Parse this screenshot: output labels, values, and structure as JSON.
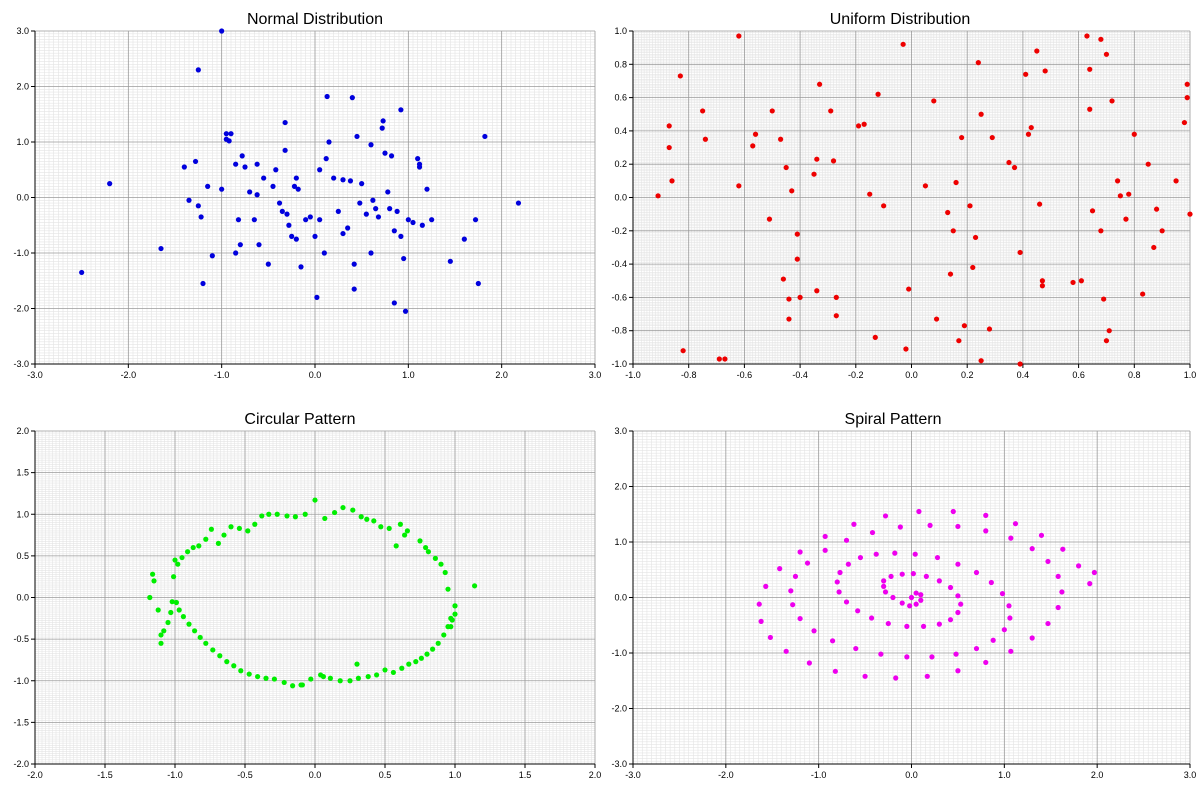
{
  "chart_data": [
    {
      "type": "scatter",
      "title": "Normal Distribution",
      "xlim": [
        -3,
        3
      ],
      "ylim": [
        -3,
        3
      ],
      "x_ticks": [
        -3,
        -2,
        -1,
        0,
        1,
        2,
        3
      ],
      "y_ticks": [
        -3,
        -2,
        -1,
        0,
        1,
        2,
        3
      ],
      "x_tick_labels": [
        "-3.0",
        "-2.0",
        "-1.0",
        "0.0",
        "1.0",
        "2.0",
        "3.0"
      ],
      "y_tick_labels": [
        "-3.0",
        "-2.0",
        "-1.0",
        "0.0",
        "1.0",
        "2.0",
        "3.0"
      ],
      "grid": true,
      "color": "#0000dd",
      "x": [
        -1.0,
        -1.25,
        -2.2,
        -2.5,
        -1.65,
        -1.4,
        -1.35,
        -1.28,
        -1.25,
        -1.2,
        -1.22,
        -1.15,
        -1.1,
        -1.0,
        -0.95,
        -0.92,
        -0.9,
        -0.85,
        -0.82,
        -0.8,
        -0.78,
        -0.75,
        -0.7,
        -0.65,
        -0.62,
        -0.6,
        -0.55,
        -0.5,
        -0.45,
        -0.42,
        -0.38,
        -0.35,
        -0.32,
        -0.3,
        -0.28,
        -0.25,
        -0.22,
        -0.2,
        -0.18,
        -0.15,
        -0.1,
        -0.05,
        0.0,
        0.02,
        0.05,
        0.1,
        0.12,
        0.15,
        0.2,
        0.25,
        0.3,
        0.35,
        0.38,
        0.42,
        0.45,
        0.48,
        0.5,
        0.55,
        0.6,
        0.62,
        0.65,
        0.68,
        0.72,
        0.75,
        0.78,
        0.8,
        0.85,
        0.88,
        0.92,
        0.95,
        1.0,
        1.05,
        1.1,
        1.12,
        1.15,
        1.2,
        1.25,
        1.45,
        1.6,
        1.72,
        1.75,
        1.82,
        2.18,
        0.42,
        -0.85,
        -0.95,
        0.85,
        0.97,
        0.05,
        0.4,
        0.13,
        0.73,
        -0.2,
        0.3,
        0.6,
        -0.32,
        0.92,
        1.12,
        -0.62,
        0.82
      ],
      "y": [
        3.0,
        2.3,
        0.25,
        -1.35,
        -0.92,
        0.55,
        -0.05,
        0.65,
        -0.15,
        -1.55,
        -0.35,
        0.2,
        -1.05,
        0.15,
        1.05,
        1.02,
        1.15,
        0.6,
        -0.4,
        -0.85,
        0.75,
        0.55,
        0.1,
        -0.4,
        0.6,
        -0.85,
        0.35,
        -1.2,
        0.2,
        0.5,
        -0.1,
        -0.25,
        0.85,
        -0.3,
        -0.5,
        -0.7,
        0.2,
        0.35,
        0.15,
        -1.25,
        -0.4,
        -0.35,
        -0.7,
        -1.8,
        0.5,
        -1.0,
        0.7,
        1.0,
        0.35,
        -0.25,
        -0.65,
        -0.55,
        0.3,
        -1.65,
        1.1,
        -0.1,
        0.25,
        -0.3,
        0.95,
        -0.05,
        -0.2,
        -0.35,
        1.25,
        0.8,
        0.1,
        -0.2,
        -0.6,
        -0.25,
        -0.7,
        -1.1,
        -0.4,
        -0.45,
        0.7,
        0.6,
        -0.5,
        0.15,
        -0.4,
        -1.15,
        -0.75,
        -0.4,
        -1.55,
        1.1,
        -0.1,
        -1.2,
        -1.0,
        1.15,
        -1.9,
        -2.05,
        -0.4,
        1.8,
        1.82,
        1.38,
        -0.75,
        0.32,
        -1.0,
        1.35,
        1.58,
        0.55,
        0.05,
        0.75
      ]
    },
    {
      "type": "scatter",
      "title": "Uniform Distribution",
      "xlim": [
        -1,
        1
      ],
      "ylim": [
        -1,
        1
      ],
      "x_ticks": [
        -1,
        -0.8,
        -0.6,
        -0.4,
        -0.2,
        0,
        0.2,
        0.4,
        0.6,
        0.8,
        1
      ],
      "y_ticks": [
        -1,
        -0.8,
        -0.6,
        -0.4,
        -0.2,
        0,
        0.2,
        0.4,
        0.6,
        0.8,
        1
      ],
      "x_tick_labels": [
        "-1.0",
        "-0.8",
        "-0.6",
        "-0.4",
        "-0.2",
        "0.0",
        "0.2",
        "0.4",
        "0.6",
        "0.8",
        "1.0"
      ],
      "y_tick_labels": [
        "-1.0",
        "-0.8",
        "-0.6",
        "-0.4",
        "-0.2",
        "0.0",
        "0.2",
        "0.4",
        "0.6",
        "0.8",
        "1.0"
      ],
      "grid": true,
      "color": "#ee0000",
      "x": [
        -0.91,
        -0.87,
        -0.87,
        -0.86,
        -0.83,
        -0.82,
        -0.75,
        -0.74,
        -0.69,
        -0.67,
        -0.62,
        -0.62,
        -0.57,
        -0.56,
        -0.51,
        -0.5,
        -0.47,
        -0.46,
        -0.45,
        -0.44,
        -0.44,
        -0.43,
        -0.41,
        -0.41,
        -0.4,
        -0.35,
        -0.34,
        -0.34,
        -0.33,
        -0.29,
        -0.28,
        -0.27,
        -0.27,
        -0.19,
        -0.17,
        -0.15,
        -0.13,
        -0.12,
        -0.1,
        -0.03,
        -0.02,
        -0.01,
        0.05,
        0.08,
        0.09,
        0.13,
        0.14,
        0.15,
        0.16,
        0.17,
        0.18,
        0.19,
        0.21,
        0.22,
        0.23,
        0.24,
        0.25,
        0.28,
        0.29,
        0.35,
        0.37,
        0.39,
        0.39,
        0.41,
        0.42,
        0.43,
        0.45,
        0.46,
        0.47,
        0.47,
        0.48,
        0.58,
        0.61,
        0.63,
        0.64,
        0.64,
        0.65,
        0.68,
        0.69,
        0.7,
        0.7,
        0.71,
        0.72,
        0.74,
        0.75,
        0.77,
        0.78,
        0.8,
        0.83,
        0.85,
        0.87,
        0.88,
        0.9,
        0.95,
        0.98,
        0.99,
        0.99,
        1.0,
        0.25,
        0.68
      ],
      "y": [
        0.01,
        0.43,
        0.3,
        0.1,
        0.73,
        -0.92,
        0.52,
        0.35,
        -0.97,
        -0.97,
        0.97,
        0.07,
        0.31,
        0.38,
        -0.13,
        0.52,
        0.35,
        -0.49,
        0.18,
        -0.61,
        -0.73,
        0.04,
        -0.22,
        -0.37,
        -0.6,
        0.14,
        0.23,
        -0.56,
        0.68,
        0.52,
        0.22,
        -0.6,
        -0.71,
        0.43,
        0.44,
        0.02,
        -0.84,
        0.62,
        -0.05,
        0.92,
        -0.91,
        -0.55,
        0.07,
        0.58,
        -0.73,
        -0.09,
        -0.46,
        -0.2,
        0.09,
        -0.86,
        0.36,
        -0.77,
        -0.05,
        -0.42,
        -0.24,
        0.81,
        -0.98,
        -0.79,
        0.36,
        0.21,
        0.18,
        -0.33,
        -1.0,
        0.74,
        0.38,
        0.42,
        0.88,
        -0.04,
        -0.5,
        -0.53,
        0.76,
        -0.51,
        -0.5,
        0.97,
        0.77,
        0.53,
        -0.08,
        0.95,
        -0.61,
        -0.86,
        0.86,
        -0.8,
        0.58,
        0.1,
        0.01,
        -0.13,
        0.02,
        0.38,
        -0.58,
        0.2,
        -0.3,
        -0.07,
        -0.2,
        0.1,
        0.45,
        0.68,
        0.6,
        -0.1,
        0.5,
        -0.2
      ]
    },
    {
      "type": "scatter",
      "title": "Circular Pattern",
      "xlim": [
        -2,
        2
      ],
      "ylim": [
        -2,
        2
      ],
      "x_ticks": [
        -2,
        -1.5,
        -1,
        -0.5,
        0,
        0.5,
        1,
        1.5,
        2
      ],
      "y_ticks": [
        -2,
        -1.5,
        -1,
        -0.5,
        0,
        0.5,
        1,
        1.5,
        2
      ],
      "x_tick_labels": [
        "-2.0",
        "-1.5",
        "-1.0",
        "-0.5",
        "0.0",
        "0.5",
        "1.0",
        "1.5",
        "2.0"
      ],
      "y_tick_labels": [
        "-2.0",
        "-1.5",
        "-1.0",
        "-0.5",
        "0.0",
        "0.5",
        "1.0",
        "1.5",
        "2.0"
      ],
      "grid": true,
      "color": "#00ee00",
      "x": [
        1.14,
        1.0,
        1.0,
        0.98,
        0.97,
        0.95,
        0.93,
        0.9,
        0.86,
        0.81,
        0.79,
        0.75,
        0.66,
        0.64,
        0.61,
        0.53,
        0.47,
        0.42,
        0.37,
        0.33,
        0.27,
        0.2,
        0.14,
        0.07,
        0.0,
        -0.07,
        -0.14,
        -0.2,
        -0.27,
        -0.33,
        -0.38,
        -0.43,
        -0.48,
        -0.54,
        -0.6,
        -0.65,
        -0.69,
        -0.74,
        -0.78,
        -0.83,
        -0.87,
        -0.91,
        -0.95,
        -0.98,
        -1.0,
        -1.01,
        -1.02,
        -1.03,
        -1.05,
        -1.08,
        -1.1,
        -1.1,
        -1.12,
        -1.15,
        -1.16,
        -1.18,
        1.0,
        0.97,
        0.95,
        0.92,
        0.88,
        0.84,
        0.8,
        0.76,
        0.72,
        0.67,
        0.62,
        0.56,
        0.5,
        0.44,
        0.38,
        0.31,
        0.25,
        0.18,
        0.11,
        0.04,
        -0.03,
        -0.09,
        -0.16,
        -0.22,
        -0.29,
        -0.35,
        -0.41,
        -0.47,
        -0.53,
        -0.58,
        -0.63,
        -0.68,
        -0.73,
        -0.78,
        -0.82,
        -0.86,
        -0.9,
        -0.94,
        -0.97,
        -0.99,
        0.06,
        -0.1,
        0.3,
        0.58
      ],
      "y": [
        0.14,
        -0.1,
        -0.2,
        -0.27,
        -0.35,
        0.1,
        0.3,
        0.4,
        0.47,
        0.55,
        0.6,
        0.68,
        0.8,
        0.75,
        0.88,
        0.83,
        0.85,
        0.92,
        0.94,
        0.97,
        1.05,
        1.08,
        1.02,
        0.95,
        1.17,
        1.0,
        0.97,
        0.98,
        1.0,
        1.0,
        0.98,
        0.88,
        0.8,
        0.83,
        0.85,
        0.75,
        0.65,
        0.82,
        0.7,
        0.62,
        0.6,
        0.55,
        0.48,
        0.4,
        0.45,
        0.25,
        -0.05,
        -0.18,
        -0.3,
        -0.4,
        -0.45,
        -0.55,
        -0.15,
        0.2,
        0.28,
        0.0,
        -0.1,
        -0.25,
        -0.35,
        -0.45,
        -0.55,
        -0.62,
        -0.68,
        -0.73,
        -0.77,
        -0.8,
        -0.85,
        -0.9,
        -0.87,
        -0.93,
        -0.95,
        -0.97,
        -1.0,
        -1.0,
        -0.97,
        -0.93,
        -0.98,
        -1.05,
        -1.06,
        -1.02,
        -0.98,
        -0.97,
        -0.95,
        -0.92,
        -0.88,
        -0.82,
        -0.77,
        -0.7,
        -0.63,
        -0.55,
        -0.48,
        -0.4,
        -0.32,
        -0.23,
        -0.15,
        -0.06,
        -0.95,
        -1.05,
        -0.8,
        0.62
      ]
    },
    {
      "type": "scatter",
      "title": "Spiral Pattern",
      "xlim": [
        -3,
        3
      ],
      "ylim": [
        -3,
        3
      ],
      "x_ticks": [
        -3,
        -2,
        -1,
        0,
        1,
        2,
        3
      ],
      "y_ticks": [
        -3,
        -2,
        -1,
        0,
        1,
        2,
        3
      ],
      "x_tick_labels": [
        "-3.0",
        "-2.0",
        "-1.0",
        "0.0",
        "1.0",
        "2.0",
        "3.0"
      ],
      "y_tick_labels": [
        "-3.0",
        "-2.0",
        "-1.0",
        "0.0",
        "1.0",
        "2.0",
        "3.0"
      ],
      "grid": true,
      "color": "#ee00ee",
      "x": [
        0.0,
        0.05,
        0.1,
        0.1,
        0.05,
        -0.02,
        -0.1,
        -0.2,
        -0.28,
        -0.3,
        -0.3,
        -0.22,
        -0.1,
        0.02,
        0.16,
        0.3,
        0.42,
        0.5,
        0.53,
        0.5,
        0.42,
        0.3,
        0.13,
        -0.05,
        -0.25,
        -0.43,
        -0.58,
        -0.7,
        -0.78,
        -0.8,
        -0.77,
        -0.68,
        -0.55,
        -0.38,
        -0.18,
        0.04,
        0.28,
        0.5,
        0.7,
        0.86,
        0.98,
        1.05,
        1.06,
        1.0,
        0.88,
        0.7,
        0.48,
        0.22,
        -0.05,
        -0.33,
        -0.6,
        -0.85,
        -1.05,
        -1.2,
        -1.28,
        -1.3,
        -1.25,
        -1.12,
        -0.93,
        -0.7,
        -0.42,
        -0.12,
        0.2,
        0.5,
        0.8,
        1.07,
        1.3,
        1.47,
        1.58,
        1.62,
        1.58,
        1.47,
        1.3,
        1.07,
        0.8,
        0.5,
        0.17,
        -0.17,
        -0.5,
        -0.82,
        -1.1,
        -1.35,
        -1.52,
        -1.62,
        -1.64,
        -1.57,
        -1.42,
        -1.2,
        -0.93,
        -0.62,
        -0.28,
        0.08,
        0.45,
        0.8,
        1.12,
        1.4,
        1.63,
        1.8,
        1.92,
        1.97
      ],
      "y": [
        0.0,
        0.08,
        0.05,
        -0.05,
        -0.12,
        -0.15,
        -0.1,
        0.0,
        0.1,
        0.2,
        0.3,
        0.38,
        0.42,
        0.43,
        0.38,
        0.3,
        0.18,
        0.03,
        -0.12,
        -0.27,
        -0.4,
        -0.48,
        -0.52,
        -0.52,
        -0.47,
        -0.37,
        -0.24,
        -0.08,
        0.1,
        0.28,
        0.45,
        0.6,
        0.72,
        0.78,
        0.8,
        0.78,
        0.72,
        0.6,
        0.45,
        0.27,
        0.07,
        -0.15,
        -0.37,
        -0.58,
        -0.77,
        -0.92,
        -1.02,
        -1.07,
        -1.07,
        -1.02,
        -0.92,
        -0.78,
        -0.6,
        -0.38,
        -0.13,
        0.12,
        0.38,
        0.62,
        0.85,
        1.03,
        1.17,
        1.27,
        1.3,
        1.28,
        1.2,
        1.07,
        0.88,
        0.65,
        0.38,
        0.1,
        -0.18,
        -0.47,
        -0.73,
        -0.97,
        -1.17,
        -1.32,
        -1.42,
        -1.45,
        -1.42,
        -1.33,
        -1.18,
        -0.97,
        -0.72,
        -0.43,
        -0.12,
        0.2,
        0.52,
        0.82,
        1.1,
        1.32,
        1.47,
        1.55,
        1.55,
        1.48,
        1.33,
        1.12,
        0.87,
        0.57,
        0.25,
        0.45
      ]
    }
  ]
}
